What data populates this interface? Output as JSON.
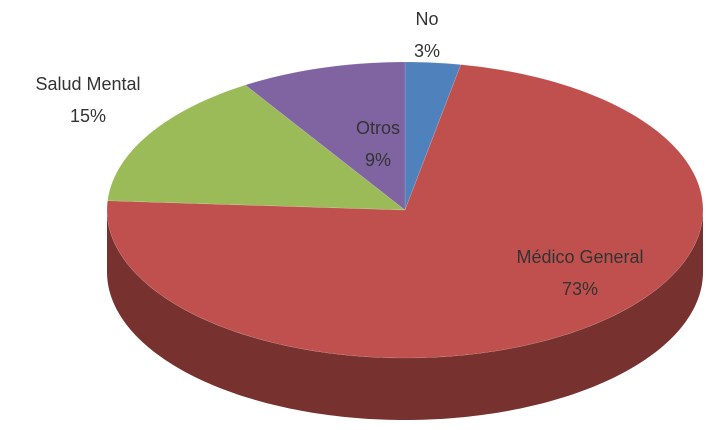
{
  "chart_data": {
    "type": "pie",
    "three_d": true,
    "categories": [
      "No",
      "Médico General",
      "Salud Mental",
      "Otros"
    ],
    "values": [
      3,
      73,
      15,
      9
    ],
    "value_labels": [
      "3%",
      "73%",
      "15%",
      "9%"
    ],
    "colors": [
      "#4f81bd",
      "#c0504d",
      "#9bbb59",
      "#8064a2"
    ]
  }
}
